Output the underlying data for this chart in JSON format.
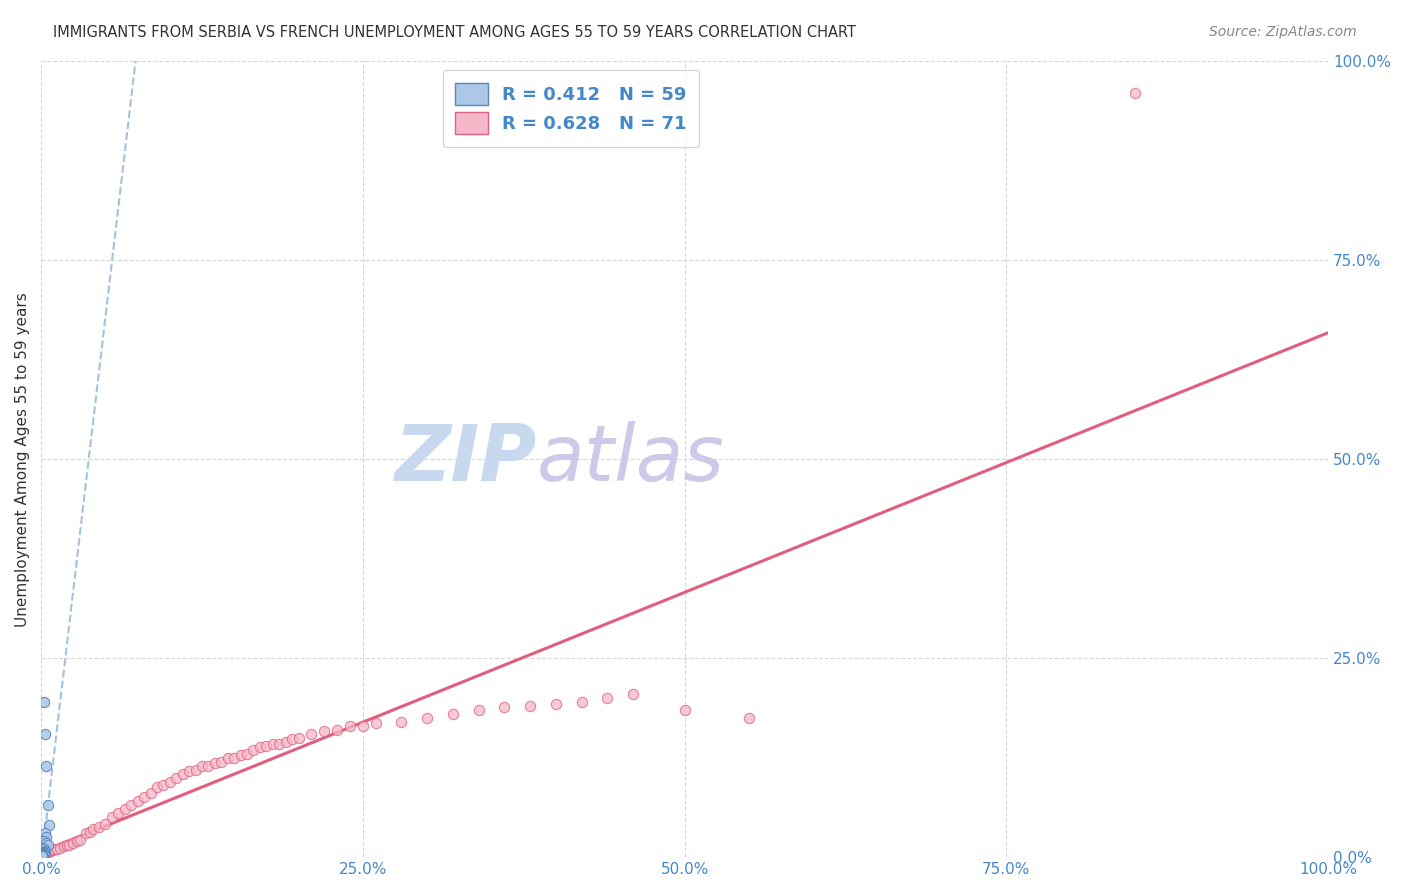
{
  "title": "IMMIGRANTS FROM SERBIA VS FRENCH UNEMPLOYMENT AMONG AGES 55 TO 59 YEARS CORRELATION CHART",
  "source": "Source: ZipAtlas.com",
  "ylabel": "Unemployment Among Ages 55 to 59 years",
  "xlim": [
    0,
    1
  ],
  "ylim": [
    0,
    1
  ],
  "xticks": [
    0.0,
    0.25,
    0.5,
    0.75,
    1.0
  ],
  "yticks": [
    0.0,
    0.25,
    0.5,
    0.75,
    1.0
  ],
  "xticklabels": [
    "0.0%",
    "25.0%",
    "50.0%",
    "75.0%",
    "100.0%"
  ],
  "yticklabels": [
    "0.0%",
    "25.0%",
    "50.0%",
    "75.0%",
    "100.0%"
  ],
  "serbia_R": 0.412,
  "serbia_N": 59,
  "french_R": 0.628,
  "french_N": 71,
  "serbia_face_color": "#adc8e8",
  "serbia_edge_color": "#5588bb",
  "french_face_color": "#f5b8c8",
  "french_edge_color": "#e06080",
  "serbian_reg_color": "#99bbdd",
  "french_reg_color": "#e05575",
  "background_color": "#ffffff",
  "grid_color": "#cccccc",
  "title_color": "#333333",
  "ylabel_color": "#333333",
  "tick_color": "#4488cc",
  "legend_text_color": "#333333",
  "legend_rn_color": "#4488cc",
  "watermark_zip_color": "#c8d8ee",
  "watermark_atlas_color": "#d0c8e8",
  "serbia_x": [
    0.002,
    0.003,
    0.004,
    0.005,
    0.006,
    0.003,
    0.004,
    0.002,
    0.004,
    0.005,
    0.001,
    0.002,
    0.003,
    0.002,
    0.001,
    0.001,
    0.001,
    0.002,
    0.001,
    0.002,
    0.001,
    0.001,
    0.001,
    0.001,
    0.002,
    0.001,
    0.001,
    0.002,
    0.001,
    0.001,
    0.001,
    0.001,
    0.001,
    0.001,
    0.001,
    0.001,
    0.001,
    0.001,
    0.001,
    0.001,
    0.001,
    0.001,
    0.001,
    0.001,
    0.001,
    0.001,
    0.001,
    0.001,
    0.001,
    0.001,
    0.001,
    0.001,
    0.001,
    0.001,
    0.001,
    0.001,
    0.001,
    0.001,
    0.001
  ],
  "serbia_y": [
    0.195,
    0.155,
    0.115,
    0.065,
    0.04,
    0.03,
    0.025,
    0.02,
    0.018,
    0.015,
    0.012,
    0.01,
    0.008,
    0.006,
    0.005,
    0.005,
    0.005,
    0.005,
    0.004,
    0.004,
    0.004,
    0.003,
    0.003,
    0.003,
    0.003,
    0.003,
    0.003,
    0.003,
    0.003,
    0.003,
    0.002,
    0.002,
    0.002,
    0.002,
    0.002,
    0.002,
    0.002,
    0.002,
    0.002,
    0.002,
    0.002,
    0.002,
    0.002,
    0.002,
    0.002,
    0.001,
    0.001,
    0.001,
    0.001,
    0.001,
    0.001,
    0.001,
    0.001,
    0.001,
    0.001,
    0.001,
    0.001,
    0.001,
    0.001
  ],
  "french_x": [
    0.002,
    0.003,
    0.004,
    0.005,
    0.006,
    0.007,
    0.008,
    0.009,
    0.01,
    0.012,
    0.015,
    0.018,
    0.02,
    0.022,
    0.025,
    0.028,
    0.03,
    0.035,
    0.038,
    0.04,
    0.045,
    0.05,
    0.055,
    0.06,
    0.065,
    0.07,
    0.075,
    0.08,
    0.085,
    0.09,
    0.095,
    0.1,
    0.105,
    0.11,
    0.115,
    0.12,
    0.125,
    0.13,
    0.135,
    0.14,
    0.145,
    0.15,
    0.155,
    0.16,
    0.165,
    0.17,
    0.175,
    0.18,
    0.185,
    0.19,
    0.195,
    0.2,
    0.21,
    0.22,
    0.23,
    0.24,
    0.25,
    0.26,
    0.28,
    0.3,
    0.32,
    0.34,
    0.36,
    0.38,
    0.4,
    0.42,
    0.44,
    0.46,
    0.5,
    0.55,
    0.85
  ],
  "french_y": [
    0.005,
    0.006,
    0.007,
    0.007,
    0.008,
    0.008,
    0.009,
    0.009,
    0.01,
    0.01,
    0.012,
    0.014,
    0.015,
    0.015,
    0.018,
    0.02,
    0.022,
    0.03,
    0.032,
    0.035,
    0.038,
    0.042,
    0.05,
    0.055,
    0.06,
    0.065,
    0.07,
    0.075,
    0.08,
    0.088,
    0.09,
    0.095,
    0.1,
    0.105,
    0.108,
    0.11,
    0.115,
    0.115,
    0.118,
    0.12,
    0.125,
    0.125,
    0.128,
    0.13,
    0.135,
    0.138,
    0.14,
    0.142,
    0.142,
    0.145,
    0.148,
    0.15,
    0.155,
    0.158,
    0.16,
    0.165,
    0.165,
    0.168,
    0.17,
    0.175,
    0.18,
    0.185,
    0.188,
    0.19,
    0.192,
    0.195,
    0.2,
    0.205,
    0.185,
    0.175,
    0.96
  ],
  "serbia_marker_size": 55,
  "french_marker_size": 55
}
